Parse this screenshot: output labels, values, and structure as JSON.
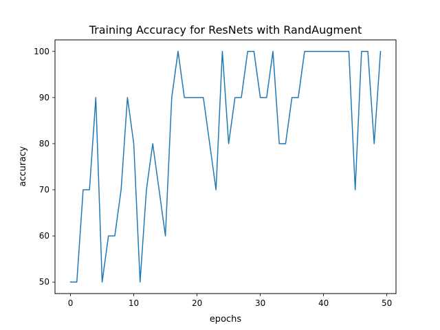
{
  "chart_data": {
    "type": "line",
    "title": "Training Accuracy for ResNets with RandAugment",
    "xlabel": "epochs",
    "ylabel": "accuracy",
    "xlim": [
      -2.45,
      51.45
    ],
    "ylim": [
      47.5,
      102.5
    ],
    "xticks": [
      0,
      10,
      20,
      30,
      40,
      50
    ],
    "yticks": [
      50,
      60,
      70,
      80,
      90,
      100
    ],
    "grid": false,
    "series": [
      {
        "color": "#1f77b4",
        "x": [
          0,
          1,
          2,
          3,
          4,
          5,
          6,
          7,
          8,
          9,
          10,
          11,
          12,
          13,
          14,
          15,
          16,
          17,
          18,
          19,
          20,
          21,
          22,
          23,
          24,
          25,
          26,
          27,
          28,
          29,
          30,
          31,
          32,
          33,
          34,
          35,
          36,
          37,
          38,
          39,
          40,
          41,
          42,
          43,
          44,
          45,
          46,
          47,
          48,
          49
        ],
        "y": [
          50,
          50,
          70,
          70,
          90,
          50,
          60,
          60,
          70,
          90,
          80,
          50,
          70,
          80,
          70,
          60,
          90,
          100,
          90,
          90,
          90,
          90,
          80,
          70,
          100,
          80,
          90,
          90,
          100,
          100,
          90,
          90,
          100,
          80,
          80,
          90,
          90,
          100,
          100,
          100,
          100,
          100,
          100,
          100,
          100,
          70,
          100,
          100,
          80,
          100
        ]
      }
    ]
  }
}
